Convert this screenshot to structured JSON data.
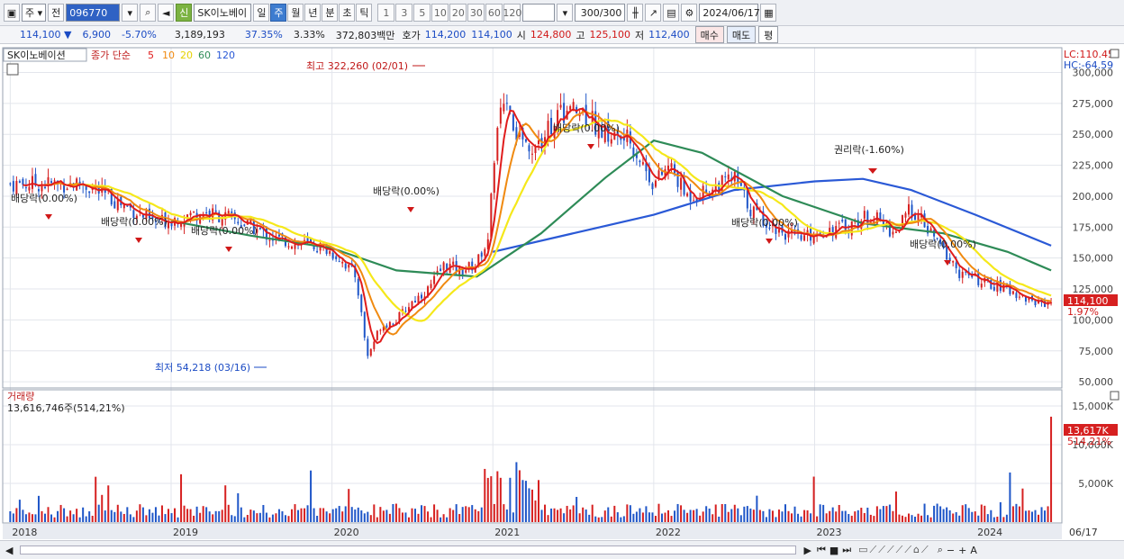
{
  "toolbar": {
    "period_select": "주",
    "prev_label": "전",
    "code": "096770",
    "new_badge": "신",
    "name": "SK이노베이",
    "tabs": [
      "일",
      "주",
      "월",
      "년",
      "분",
      "초",
      "틱"
    ],
    "active_tab": "주",
    "intervals": [
      "1",
      "3",
      "5",
      "10",
      "20",
      "30",
      "60",
      "120"
    ],
    "count": "300",
    "count_total": "/300",
    "date": "2024/06/17"
  },
  "quote": {
    "price": "114,100",
    "arrow": "▼",
    "change": "6,900",
    "change_pct": "-5.70%",
    "volume": "3,189,193",
    "vol_ratio": "37.35%",
    "turnover": "3.33%",
    "amount": "372,803백만",
    "hoga_label": "호가",
    "ask": "114,200",
    "bid": "114,100",
    "open_label": "시",
    "open": "124,800",
    "high_label": "고",
    "high": "125,100",
    "low_label": "저",
    "low": "112,400",
    "buy_label": "매수",
    "sell_label": "매도",
    "eval_label": "평"
  },
  "legend": {
    "name": "SK이노베이션",
    "ma_title": "종가 단순",
    "ma5": "5",
    "ma10": "10",
    "ma20": "20",
    "ma60": "60",
    "ma120": "120",
    "lc": "LC:110.45",
    "hc": "HC:-64.59"
  },
  "colors": {
    "up": "#d62020",
    "down": "#1f56c8",
    "ma5": "#e01c1c",
    "ma10": "#f08a10",
    "ma20": "#f5e81a",
    "ma60": "#2e8b57",
    "ma120": "#2a59d6"
  },
  "annotations": {
    "high": "최고 322,260 (02/01)",
    "low": "최저 54,218 (03/16)",
    "ex_div": "배당락(0.00%)",
    "ex_right": "권리락(-1.60%)",
    "current_tag": "114,100",
    "pct_tag": "1.97%"
  },
  "volume_panel": {
    "title": "거래량",
    "value": "13,616,746주(514,21%)",
    "current_tag": "13,617K",
    "pct_tag": "514,21%",
    "ticks": [
      "15,000K",
      "10,000K",
      "5,000K"
    ]
  },
  "status": {
    "date_label": "06/17"
  },
  "chart_data": {
    "type": "candlestick",
    "y_ticks": [
      50000,
      75000,
      100000,
      125000,
      150000,
      175000,
      200000,
      225000,
      250000,
      275000,
      300000
    ],
    "ylim": [
      45000,
      320000
    ],
    "x_labels": [
      "2018",
      "2019",
      "2020",
      "2021",
      "2022",
      "2023",
      "2024"
    ],
    "close_series": [
      [
        2018.45,
        210000
      ],
      [
        2018.6,
        200000
      ],
      [
        2018.75,
        190000
      ],
      [
        2018.9,
        178000
      ],
      [
        2019.05,
        183000
      ],
      [
        2019.2,
        187000
      ],
      [
        2019.35,
        183000
      ],
      [
        2019.5,
        175000
      ],
      [
        2019.65,
        165000
      ],
      [
        2019.8,
        162000
      ],
      [
        2019.95,
        158000
      ],
      [
        2020.05,
        150000
      ],
      [
        2020.15,
        135000
      ],
      [
        2020.22,
        70000
      ],
      [
        2020.3,
        95000
      ],
      [
        2020.4,
        100000
      ],
      [
        2020.5,
        115000
      ],
      [
        2020.6,
        125000
      ],
      [
        2020.7,
        145000
      ],
      [
        2020.8,
        140000
      ],
      [
        2020.9,
        145000
      ],
      [
        2020.97,
        170000
      ],
      [
        2021.05,
        280000
      ],
      [
        2021.15,
        250000
      ],
      [
        2021.25,
        240000
      ],
      [
        2021.4,
        265000
      ],
      [
        2021.55,
        270000
      ],
      [
        2021.7,
        250000
      ],
      [
        2021.85,
        245000
      ],
      [
        2022.0,
        210000
      ],
      [
        2022.1,
        225000
      ],
      [
        2022.2,
        200000
      ],
      [
        2022.35,
        205000
      ],
      [
        2022.5,
        215000
      ],
      [
        2022.6,
        190000
      ],
      [
        2022.75,
        175000
      ],
      [
        2022.9,
        165000
      ],
      [
        2023.05,
        172000
      ],
      [
        2023.2,
        175000
      ],
      [
        2023.35,
        185000
      ],
      [
        2023.5,
        170000
      ],
      [
        2023.6,
        190000
      ],
      [
        2023.75,
        165000
      ],
      [
        2023.9,
        138000
      ],
      [
        2024.05,
        130000
      ],
      [
        2024.2,
        125000
      ],
      [
        2024.35,
        115000
      ],
      [
        2024.47,
        114100
      ]
    ],
    "ma120": [
      [
        2021.0,
        155000
      ],
      [
        2021.5,
        170000
      ],
      [
        2022.0,
        185000
      ],
      [
        2022.5,
        205000
      ],
      [
        2023.0,
        212000
      ],
      [
        2023.3,
        214000
      ],
      [
        2023.6,
        205000
      ],
      [
        2024.0,
        185000
      ],
      [
        2024.47,
        160000
      ]
    ],
    "ma60": [
      [
        2019.0,
        180000
      ],
      [
        2019.5,
        168000
      ],
      [
        2020.0,
        158000
      ],
      [
        2020.4,
        140000
      ],
      [
        2020.9,
        135000
      ],
      [
        2021.3,
        170000
      ],
      [
        2021.7,
        215000
      ],
      [
        2022.0,
        245000
      ],
      [
        2022.3,
        235000
      ],
      [
        2022.8,
        200000
      ],
      [
        2023.3,
        178000
      ],
      [
        2023.8,
        170000
      ],
      [
        2024.2,
        155000
      ],
      [
        2024.47,
        140000
      ]
    ],
    "volume_max_k": 15000,
    "volume_current_k": 13617
  }
}
